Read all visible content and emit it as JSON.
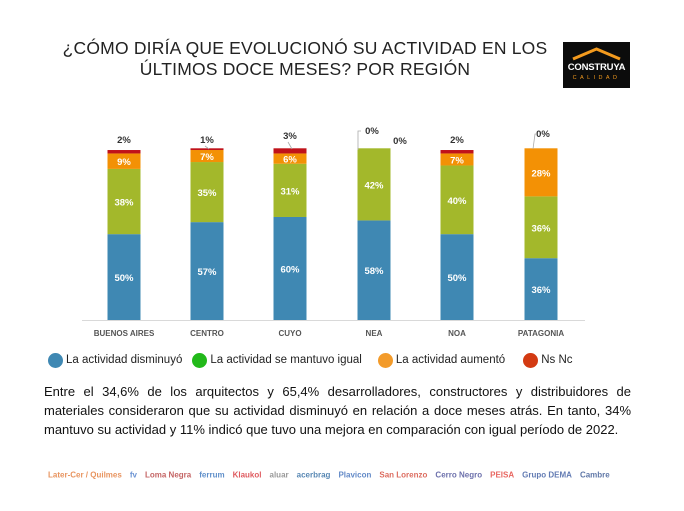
{
  "title_lines": [
    "¿CÓMO DIRÍA QUE EVOLUCIONÓ SU ACTIVIDAD EN LOS",
    "ÚLTIMOS DOCE MESES? POR REGIÓN"
  ],
  "logo": {
    "line1": "CONSTRUYA",
    "line2": "CALIDAD"
  },
  "colors": {
    "disminuyo": "#3f88b3",
    "igual": "#a3b82b",
    "aumento": "#f39105",
    "nsnc": "#c0121a"
  },
  "chart_data": {
    "type": "bar",
    "stacked": true,
    "title": "¿Cómo diría que evolucionó su actividad en los últimos doce meses? Por región",
    "xlabel": "",
    "ylabel": "",
    "ylim": [
      0,
      100
    ],
    "grid": false,
    "legend_position": "bottom",
    "categories": [
      "BUENOS AIRES",
      "CENTRO",
      "CUYO",
      "NEA",
      "NOA",
      "PATAGONIA"
    ],
    "series": [
      {
        "name": "La actividad disminuyó",
        "key": "disminuyo",
        "values": [
          50,
          57,
          60,
          58,
          50,
          36
        ]
      },
      {
        "name": "La actividad se mantuvo igual",
        "key": "igual",
        "values": [
          38,
          35,
          31,
          42,
          40,
          36
        ]
      },
      {
        "name": "La actividad aumentó",
        "key": "aumento",
        "values": [
          9,
          7,
          6,
          0,
          7,
          28
        ]
      },
      {
        "name": "Ns Nc",
        "key": "nsnc",
        "values": [
          2,
          1,
          3,
          0,
          2,
          0
        ]
      }
    ]
  },
  "legend": [
    {
      "label": "La actividad disminuyó",
      "color": "#3f88b3"
    },
    {
      "label": "La actividad se mantuvo igual",
      "color": "#22b91a"
    },
    {
      "label": "La actividad aumentó",
      "color": "#f39b2a"
    },
    {
      "label": "Ns Nc",
      "color": "#d33a12"
    }
  ],
  "paragraph": "Entre el 34,6% de los arquitectos y 65,4% desarrolladores, constructores y distribuidores de materiales consideraron que su actividad disminuyó en relación a doce meses atrás. En tanto, 34% mantuvo su actividad y 11% indicó que tuvo una mejora en comparación con igual período de 2022.",
  "sponsors": [
    {
      "name": "Later-Cer / Quilmes",
      "color": "#e0702a"
    },
    {
      "name": "fv",
      "color": "#3a6fc4"
    },
    {
      "name": "Loma Negra",
      "color": "#b03030"
    },
    {
      "name": "ferrum",
      "color": "#2a6ab8"
    },
    {
      "name": "Klaukol",
      "color": "#d4242a"
    },
    {
      "name": "aluar",
      "color": "#777777"
    },
    {
      "name": "acerbrag",
      "color": "#1f5f9a"
    },
    {
      "name": "Plavicon",
      "color": "#2e62b4"
    },
    {
      "name": "San Lorenzo",
      "color": "#d13b2a"
    },
    {
      "name": "Cerro Negro",
      "color": "#3a3f8f"
    },
    {
      "name": "PEISA",
      "color": "#e0322a"
    },
    {
      "name": "Grupo DEMA",
      "color": "#2e4f9a"
    },
    {
      "name": "Cambre",
      "color": "#2a4a8a"
    }
  ]
}
